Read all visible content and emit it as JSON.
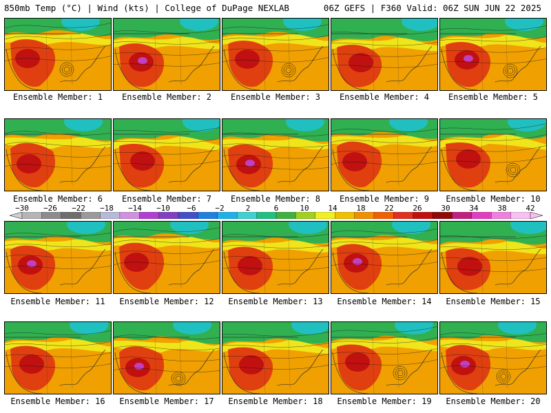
{
  "header": {
    "left": "850mb Temp (°C) | Wind (kts) | College of DuPage NEXLAB",
    "right": "06Z GEFS | F360 Valid: 06Z SUN JUN 22 2025"
  },
  "panels": [
    {
      "caption": "Ensemble Member: 1"
    },
    {
      "caption": "Ensemble Member: 2"
    },
    {
      "caption": "Ensemble Member: 3"
    },
    {
      "caption": "Ensemble Member: 4"
    },
    {
      "caption": "Ensemble Member: 5"
    },
    {
      "caption": "Ensemble Member: 6"
    },
    {
      "caption": "Ensemble Member: 7"
    },
    {
      "caption": "Ensemble Member: 8"
    },
    {
      "caption": "Ensemble Member: 9"
    },
    {
      "caption": "Ensemble Member: 10"
    },
    {
      "caption": "Ensemble Member: 11"
    },
    {
      "caption": "Ensemble Member: 12"
    },
    {
      "caption": "Ensemble Member: 13"
    },
    {
      "caption": "Ensemble Member: 14"
    },
    {
      "caption": "Ensemble Member: 15"
    },
    {
      "caption": "Ensemble Member: 16"
    },
    {
      "caption": "Ensemble Member: 17"
    },
    {
      "caption": "Ensemble Member: 18"
    },
    {
      "caption": "Ensemble Member: 19"
    },
    {
      "caption": "Ensemble Member: 20"
    }
  ],
  "colorbar": {
    "labels": [
      "−30",
      "−26",
      "−22",
      "−18",
      "−14",
      "−10",
      "−6",
      "−2",
      "2",
      "6",
      "10",
      "14",
      "18",
      "22",
      "26",
      "30",
      "34",
      "38",
      "42"
    ],
    "colors": [
      "#b4b4b4",
      "#8c8c8c",
      "#6e6e6e",
      "#9a9a9a",
      "#b8b8d8",
      "#d090e0",
      "#b040d0",
      "#8040c0",
      "#4050c8",
      "#2080e0",
      "#20b0e8",
      "#40d0d0",
      "#20c080",
      "#40b040",
      "#a0d020",
      "#f0f020",
      "#f0c000",
      "#f09000",
      "#f06000",
      "#e03020",
      "#c01010",
      "#900808",
      "#c02080",
      "#e040c0",
      "#f080e0",
      "#f8c0f0"
    ],
    "fill_colors": {
      "cold": "#20c0c0",
      "cool": "#30b050",
      "mild": "#f0f020",
      "warm": "#f0a000",
      "hot": "#e04010",
      "vhot": "#c01010",
      "extreme": "#c040c0"
    }
  }
}
